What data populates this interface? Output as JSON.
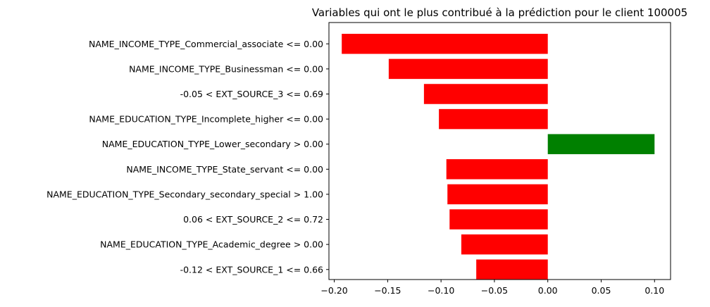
{
  "chart_data": {
    "type": "bar",
    "orientation": "horizontal",
    "title": "Variables qui ont le plus contribué à la prédiction pour le client 100005",
    "xlabel": "",
    "ylabel": "",
    "categories": [
      "NAME_INCOME_TYPE_Commercial_associate <= 0.00",
      "NAME_INCOME_TYPE_Businessman <= 0.00",
      "-0.05 < EXT_SOURCE_3 <= 0.69",
      "NAME_EDUCATION_TYPE_Incomplete_higher <= 0.00",
      "NAME_EDUCATION_TYPE_Lower_secondary > 0.00",
      "NAME_INCOME_TYPE_State_servant <= 0.00",
      "NAME_EDUCATION_TYPE_Secondary_secondary_special > 1.00",
      "0.06 < EXT_SOURCE_2 <= 0.72",
      "NAME_EDUCATION_TYPE_Academic_degree > 0.00",
      "-0.12 < EXT_SOURCE_1 <= 0.66"
    ],
    "values": [
      -0.193,
      -0.149,
      -0.116,
      -0.102,
      0.1,
      -0.095,
      -0.094,
      -0.092,
      -0.081,
      -0.067
    ],
    "xlim": [
      -0.205,
      0.115
    ],
    "xticks": [
      -0.2,
      -0.15,
      -0.1,
      -0.05,
      0.0,
      0.05,
      0.1
    ],
    "xtick_labels": [
      "−0.20",
      "−0.15",
      "−0.10",
      "−0.05",
      "0.00",
      "0.05",
      "0.10"
    ],
    "colors": {
      "negative": "#ff0000",
      "positive": "#008000"
    },
    "grid": false
  }
}
